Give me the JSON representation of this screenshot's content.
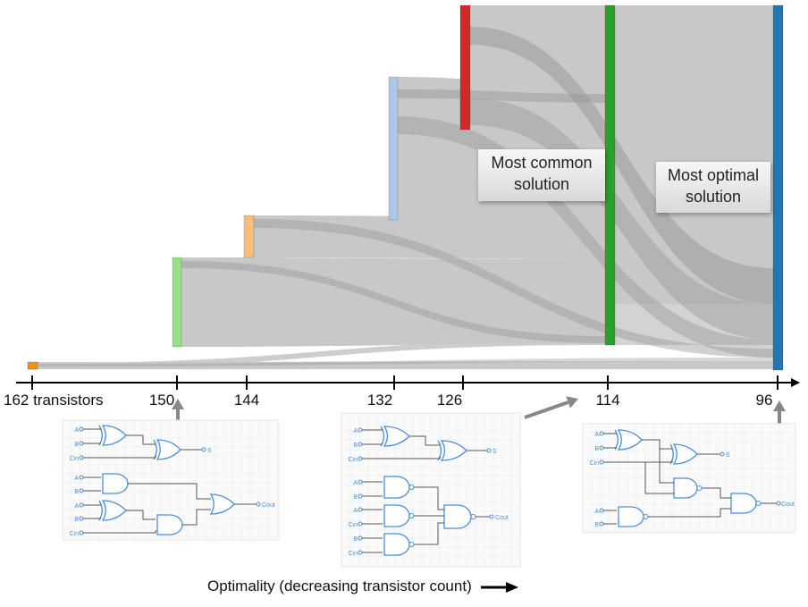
{
  "axis": {
    "ticks": [
      {
        "label": "162 transistors",
        "value": 162
      },
      {
        "label": "150",
        "value": 150
      },
      {
        "label": "144",
        "value": 144
      },
      {
        "label": "132",
        "value": 132
      },
      {
        "label": "126",
        "value": 126
      },
      {
        "label": "114",
        "value": 114
      },
      {
        "label": "96",
        "value": 96
      }
    ],
    "caption": "Optimality (decreasing transistor count)"
  },
  "nodes": [
    {
      "id": "n162",
      "value": 162,
      "color": "#f28e1c"
    },
    {
      "id": "n150",
      "value": 150,
      "color": "#98df8a"
    },
    {
      "id": "n144",
      "value": 144,
      "color": "#ffbb78"
    },
    {
      "id": "n132",
      "value": 132,
      "color": "#aec7e8"
    },
    {
      "id": "n126",
      "value": 126,
      "color": "#d62728"
    },
    {
      "id": "n114",
      "value": 114,
      "color": "#2ca02c"
    },
    {
      "id": "n96",
      "value": 96,
      "color": "#1f77b4"
    }
  ],
  "callouts": {
    "common": "Most common solution",
    "optimal": "Most optimal solution"
  },
  "circuits": {
    "input_a": "A",
    "input_b": "B",
    "input_cin": "Cin",
    "output_s": "S",
    "output_cout": "Cout"
  },
  "colors": {
    "flow": "#c8c8c8",
    "flow_dark": "#9a9a9a",
    "gate": "#4a90d9",
    "arrow": "#888888"
  }
}
